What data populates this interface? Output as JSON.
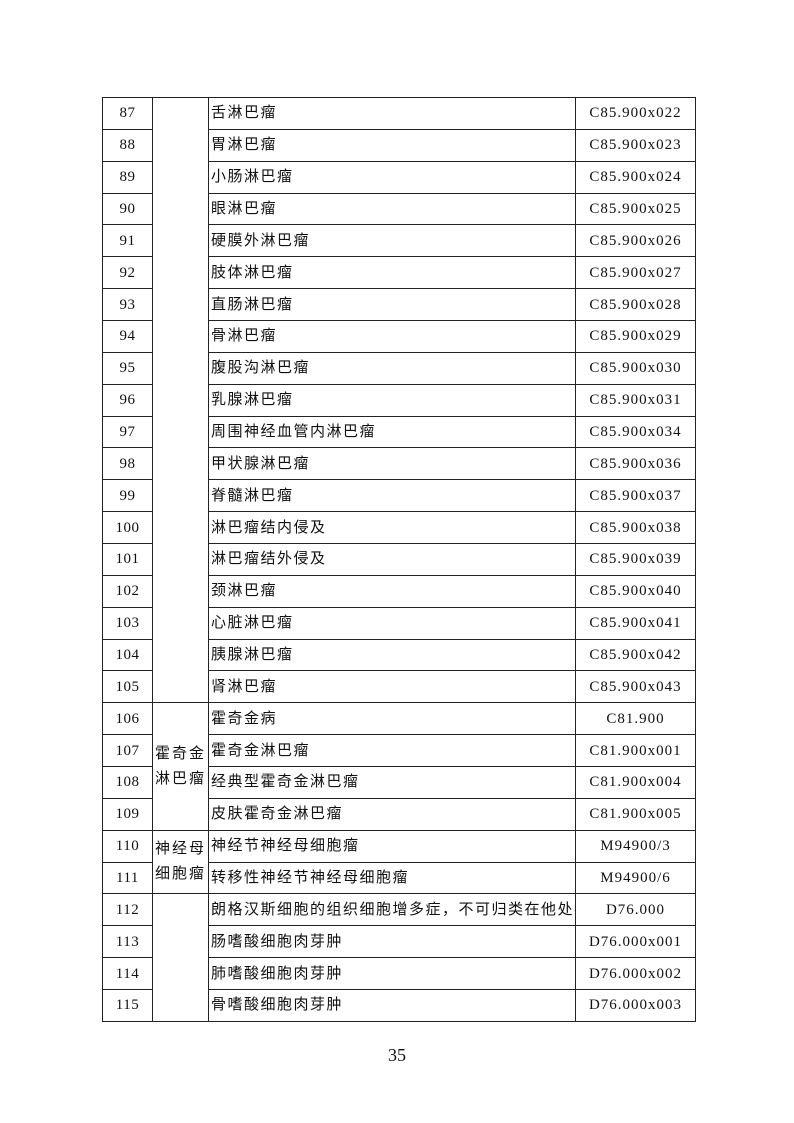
{
  "rows": [
    {
      "no": "87",
      "name": "舌淋巴瘤",
      "code": "C85.900x022"
    },
    {
      "no": "88",
      "name": "胃淋巴瘤",
      "code": "C85.900x023"
    },
    {
      "no": "89",
      "name": "小肠淋巴瘤",
      "code": "C85.900x024"
    },
    {
      "no": "90",
      "name": "眼淋巴瘤",
      "code": "C85.900x025"
    },
    {
      "no": "91",
      "name": "硬膜外淋巴瘤",
      "code": "C85.900x026"
    },
    {
      "no": "92",
      "name": "肢体淋巴瘤",
      "code": "C85.900x027"
    },
    {
      "no": "93",
      "name": "直肠淋巴瘤",
      "code": "C85.900x028"
    },
    {
      "no": "94",
      "name": "骨淋巴瘤",
      "code": "C85.900x029"
    },
    {
      "no": "95",
      "name": "腹股沟淋巴瘤",
      "code": "C85.900x030"
    },
    {
      "no": "96",
      "name": "乳腺淋巴瘤",
      "code": "C85.900x031"
    },
    {
      "no": "97",
      "name": "周围神经血管内淋巴瘤",
      "code": "C85.900x034"
    },
    {
      "no": "98",
      "name": "甲状腺淋巴瘤",
      "code": "C85.900x036"
    },
    {
      "no": "99",
      "name": "脊髓淋巴瘤",
      "code": "C85.900x037"
    },
    {
      "no": "100",
      "name": "淋巴瘤结内侵及",
      "code": "C85.900x038"
    },
    {
      "no": "101",
      "name": "淋巴瘤结外侵及",
      "code": "C85.900x039"
    },
    {
      "no": "102",
      "name": "颈淋巴瘤",
      "code": "C85.900x040"
    },
    {
      "no": "103",
      "name": "心脏淋巴瘤",
      "code": "C85.900x041"
    },
    {
      "no": "104",
      "name": "胰腺淋巴瘤",
      "code": "C85.900x042"
    },
    {
      "no": "105",
      "name": "肾淋巴瘤",
      "code": "C85.900x043"
    },
    {
      "no": "106",
      "name": "霍奇金病",
      "code": "C81.900"
    },
    {
      "no": "107",
      "name": "霍奇金淋巴瘤",
      "code": "C81.900x001"
    },
    {
      "no": "108",
      "name": "经典型霍奇金淋巴瘤",
      "code": "C81.900x004"
    },
    {
      "no": "109",
      "name": "皮肤霍奇金淋巴瘤",
      "code": "C81.900x005"
    },
    {
      "no": "110",
      "name": "神经节神经母细胞瘤",
      "code": "M94900/3"
    },
    {
      "no": "111",
      "name": "转移性神经节神经母细胞瘤",
      "code": "M94900/6"
    },
    {
      "no": "112",
      "name": "朗格汉斯细胞的组织细胞增多症，不可归类在他处者",
      "code": "D76.000"
    },
    {
      "no": "113",
      "name": "肠嗜酸细胞肉芽肿",
      "code": "D76.000x001"
    },
    {
      "no": "114",
      "name": "肺嗜酸细胞肉芽肿",
      "code": "D76.000x002"
    },
    {
      "no": "115",
      "name": "骨嗜酸细胞肉芽肿",
      "code": "D76.000x003"
    }
  ],
  "categories": [
    {
      "label": "",
      "start": 0,
      "span": 19
    },
    {
      "label": "霍奇金淋巴瘤",
      "start": 19,
      "span": 4
    },
    {
      "label": "神经母细胞瘤",
      "start": 23,
      "span": 2
    },
    {
      "label": "",
      "start": 25,
      "span": 4
    }
  ],
  "page_number": "35"
}
